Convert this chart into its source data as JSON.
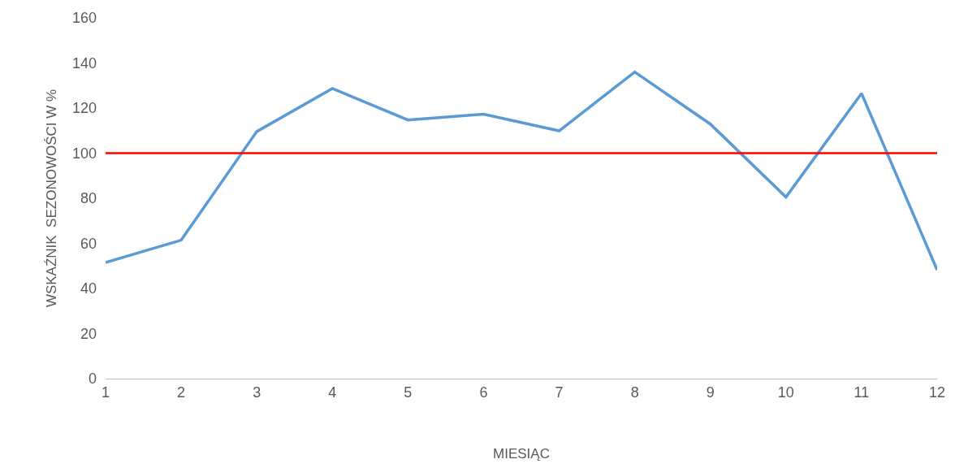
{
  "chart_data": {
    "type": "line",
    "xlabel": "MIESIĄC",
    "ylabel": "WSKAŹNIK  SEZONOWOŚCI W %",
    "x": [
      1,
      2,
      3,
      4,
      5,
      6,
      7,
      8,
      9,
      10,
      11,
      12
    ],
    "series": [
      {
        "color": "#5b9bd5",
        "values": [
          51.5,
          61.4,
          109.6,
          128.7,
          114.7,
          117.3,
          109.9,
          136,
          112.9,
          80.5,
          126.5,
          48.2
        ]
      }
    ],
    "xlim": [
      1,
      12
    ],
    "xticks": [
      1,
      2,
      3,
      4,
      5,
      6,
      7,
      8,
      9,
      10,
      11,
      12
    ],
    "ylim": [
      0,
      160
    ],
    "yticks": [
      0,
      20,
      40,
      60,
      80,
      100,
      120,
      140,
      160
    ],
    "ref_lines": [
      {
        "axis": "y",
        "value": 100,
        "color": "#ff0000"
      }
    ],
    "marker": "none",
    "line_style": "solid"
  }
}
